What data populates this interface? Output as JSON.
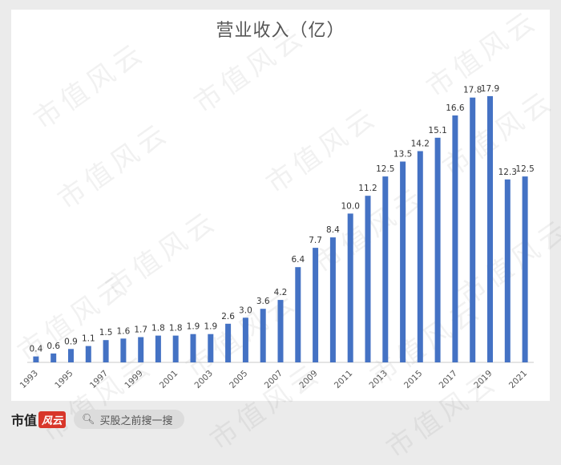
{
  "chart_data": {
    "type": "bar",
    "title": "营业收入（亿）",
    "categories": [
      "1993",
      "1994",
      "1995",
      "1996",
      "1997",
      "1998",
      "1999",
      "2000",
      "2001",
      "2002",
      "2003",
      "2004",
      "2005",
      "2006",
      "2007",
      "2008",
      "2009",
      "2010",
      "2011",
      "2012",
      "2013",
      "2014",
      "2015",
      "2016",
      "2017",
      "2018",
      "2019",
      "2020",
      "2021"
    ],
    "x_tick_labels": [
      "1993",
      "",
      "1995",
      "",
      "1997",
      "",
      "1999",
      "",
      "2001",
      "",
      "2003",
      "",
      "2005",
      "",
      "2007",
      "",
      "2009",
      "",
      "2011",
      "",
      "2013",
      "",
      "2015",
      "",
      "2017",
      "",
      "2019",
      "",
      "2021"
    ],
    "values": [
      0.4,
      0.6,
      0.9,
      1.1,
      1.5,
      1.6,
      1.7,
      1.8,
      1.8,
      1.9,
      1.9,
      2.6,
      3.0,
      3.6,
      4.2,
      6.4,
      7.7,
      8.4,
      10.0,
      11.2,
      12.5,
      13.5,
      14.2,
      15.1,
      16.6,
      17.8,
      17.9,
      12.3,
      12.5
    ],
    "data_labels": [
      "0.4",
      "0.6",
      "0.9",
      "1.1",
      "1.5",
      "1.6",
      "1.7",
      "1.8",
      "1.8",
      "1.9",
      "1.9",
      "2.6",
      "3.0",
      "3.6",
      "4.2",
      "6.4",
      "7.7",
      "8.4",
      "10.0",
      "11.2",
      "12.5",
      "13.5",
      "14.2",
      "15.1",
      "16.6",
      "17.8",
      "17.9",
      "12.3",
      "12.5"
    ],
    "xlabel": "",
    "ylabel": "",
    "ylim": [
      0,
      18
    ],
    "grid": false,
    "bar_color": "#4472c4"
  },
  "watermark": "市值风云",
  "footer": {
    "logo_text": "市值",
    "logo_badge": "风云",
    "search_icon": "search-icon",
    "search_text": "买股之前搜一搜"
  }
}
